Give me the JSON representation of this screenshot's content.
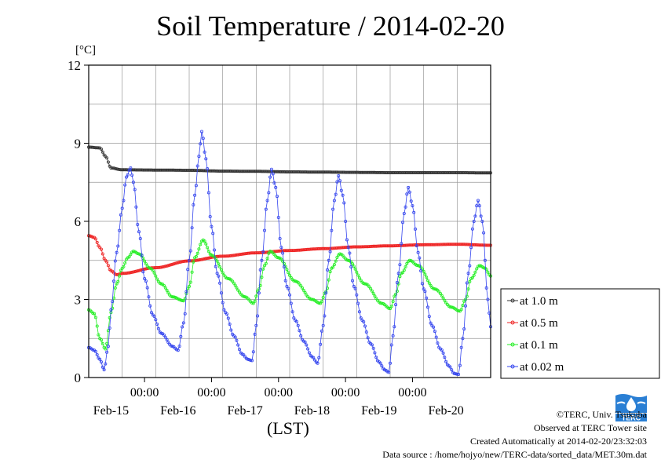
{
  "title": "Soil Temperature / 2014-02-20",
  "y_unit": "[°C]",
  "x_unit": "(LST)",
  "credits": [
    "©TERC, Univ. Tsukuba",
    "Observed at TERC Tower site",
    "Created Automatically at 2014-02-20/23:32:03",
    "Data source : /home/hojyo/new/TERC-data/sorted_data/MET.30m.dat"
  ],
  "logo_text": "TERC",
  "chart_data": {
    "type": "line",
    "title": "Soil Temperature / 2014-02-20",
    "ylabel": "[°C]",
    "xlabel": "(LST)",
    "ylim": [
      0,
      12
    ],
    "yticks": [
      0,
      3,
      6,
      9,
      12
    ],
    "xlim_hours": [
      0,
      144
    ],
    "x_time_ticks": [
      "00:00",
      "00:00",
      "00:00",
      "00:00",
      "00:00"
    ],
    "x_day_labels": [
      "Feb-15",
      "Feb-16",
      "Feb-17",
      "Feb-18",
      "Feb-19",
      "Feb-20"
    ],
    "grid": true,
    "legend_position": "right",
    "series": [
      {
        "name": "at 1.0 m",
        "color": "#333333",
        "points": [
          [
            0,
            8.85
          ],
          [
            4,
            8.82
          ],
          [
            6,
            8.5
          ],
          [
            8,
            8.05
          ],
          [
            12,
            7.98
          ],
          [
            24,
            7.97
          ],
          [
            36,
            7.96
          ],
          [
            48,
            7.93
          ],
          [
            60,
            7.92
          ],
          [
            72,
            7.9
          ],
          [
            84,
            7.89
          ],
          [
            96,
            7.88
          ],
          [
            108,
            7.87
          ],
          [
            120,
            7.87
          ],
          [
            132,
            7.87
          ],
          [
            144,
            7.86
          ]
        ]
      },
      {
        "name": "at 0.5 m",
        "color": "#ee2222",
        "points": [
          [
            0,
            5.45
          ],
          [
            2,
            5.38
          ],
          [
            4,
            5.0
          ],
          [
            6,
            4.5
          ],
          [
            8,
            4.1
          ],
          [
            10,
            3.95
          ],
          [
            12,
            4.0
          ],
          [
            24,
            4.22
          ],
          [
            36,
            4.48
          ],
          [
            48,
            4.66
          ],
          [
            60,
            4.79
          ],
          [
            72,
            4.88
          ],
          [
            84,
            4.95
          ],
          [
            96,
            5.02
          ],
          [
            108,
            5.06
          ],
          [
            120,
            5.1
          ],
          [
            132,
            5.12
          ],
          [
            144,
            5.08
          ]
        ]
      },
      {
        "name": "at 0.1 m",
        "color": "#22ee22",
        "points": [
          [
            0,
            2.6
          ],
          [
            2,
            2.45
          ],
          [
            4,
            1.5
          ],
          [
            6,
            1.1
          ],
          [
            8,
            2.5
          ],
          [
            10,
            3.6
          ],
          [
            12,
            4.2
          ],
          [
            14,
            4.6
          ],
          [
            16,
            4.85
          ],
          [
            18,
            4.75
          ],
          [
            22,
            4.2
          ],
          [
            26,
            3.6
          ],
          [
            30,
            3.1
          ],
          [
            34,
            2.95
          ],
          [
            36,
            3.5
          ],
          [
            38,
            4.6
          ],
          [
            41,
            5.28
          ],
          [
            44,
            4.7
          ],
          [
            50,
            3.8
          ],
          [
            56,
            3.1
          ],
          [
            59,
            2.85
          ],
          [
            61,
            3.4
          ],
          [
            63,
            4.3
          ],
          [
            65,
            4.85
          ],
          [
            68,
            4.6
          ],
          [
            74,
            3.7
          ],
          [
            80,
            3.0
          ],
          [
            83,
            2.85
          ],
          [
            85,
            3.3
          ],
          [
            87,
            4.2
          ],
          [
            90,
            4.75
          ],
          [
            93,
            4.5
          ],
          [
            99,
            3.6
          ],
          [
            105,
            2.85
          ],
          [
            108,
            2.65
          ],
          [
            110,
            3.2
          ],
          [
            112,
            4.0
          ],
          [
            115,
            4.5
          ],
          [
            118,
            4.3
          ],
          [
            124,
            3.4
          ],
          [
            130,
            2.7
          ],
          [
            133,
            2.55
          ],
          [
            135,
            3.0
          ],
          [
            137,
            3.8
          ],
          [
            140,
            4.3
          ],
          [
            142,
            4.2
          ],
          [
            144,
            3.9
          ]
        ]
      },
      {
        "name": "at 0.02 m",
        "color": "#3344ee",
        "points": [
          [
            0,
            1.15
          ],
          [
            2,
            1.05
          ],
          [
            4,
            0.7
          ],
          [
            5.5,
            0.3
          ],
          [
            7,
            1.2
          ],
          [
            8,
            2.6
          ],
          [
            10,
            4.8
          ],
          [
            12,
            6.5
          ],
          [
            13.5,
            7.7
          ],
          [
            15,
            8.05
          ],
          [
            16,
            7.5
          ],
          [
            18,
            5.6
          ],
          [
            20,
            3.8
          ],
          [
            23,
            2.4
          ],
          [
            26,
            1.7
          ],
          [
            30,
            1.2
          ],
          [
            32,
            1.05
          ],
          [
            34,
            2.1
          ],
          [
            36,
            4.5
          ],
          [
            38,
            7.0
          ],
          [
            39.5,
            8.5
          ],
          [
            40.5,
            9.45
          ],
          [
            42,
            8.4
          ],
          [
            44,
            5.8
          ],
          [
            46,
            4.0
          ],
          [
            49,
            2.5
          ],
          [
            52,
            1.6
          ],
          [
            55,
            0.9
          ],
          [
            57,
            0.7
          ],
          [
            58.5,
            0.65
          ],
          [
            60,
            2.0
          ],
          [
            62,
            4.5
          ],
          [
            64,
            6.8
          ],
          [
            65.5,
            8.0
          ],
          [
            67,
            7.3
          ],
          [
            69,
            5.0
          ],
          [
            71,
            3.5
          ],
          [
            74,
            2.2
          ],
          [
            77,
            1.4
          ],
          [
            80,
            0.8
          ],
          [
            82,
            0.55
          ],
          [
            84,
            2.0
          ],
          [
            86,
            4.5
          ],
          [
            88,
            6.8
          ],
          [
            89.5,
            7.75
          ],
          [
            91,
            7.0
          ],
          [
            93,
            5.0
          ],
          [
            95,
            3.5
          ],
          [
            98,
            2.2
          ],
          [
            101,
            1.3
          ],
          [
            104,
            0.6
          ],
          [
            106,
            0.3
          ],
          [
            107.5,
            0.2
          ],
          [
            109,
            1.6
          ],
          [
            111,
            4.0
          ],
          [
            113,
            6.3
          ],
          [
            114.5,
            7.3
          ],
          [
            116,
            6.6
          ],
          [
            118,
            4.8
          ],
          [
            120,
            3.4
          ],
          [
            123,
            2.0
          ],
          [
            126,
            1.1
          ],
          [
            129,
            0.45
          ],
          [
            131,
            0.15
          ],
          [
            132.5,
            0.12
          ],
          [
            134,
            1.5
          ],
          [
            136,
            4.0
          ],
          [
            138,
            6.0
          ],
          [
            139.5,
            6.8
          ],
          [
            141,
            6.0
          ],
          [
            143,
            3.0
          ],
          [
            144,
            1.95
          ]
        ]
      }
    ]
  }
}
